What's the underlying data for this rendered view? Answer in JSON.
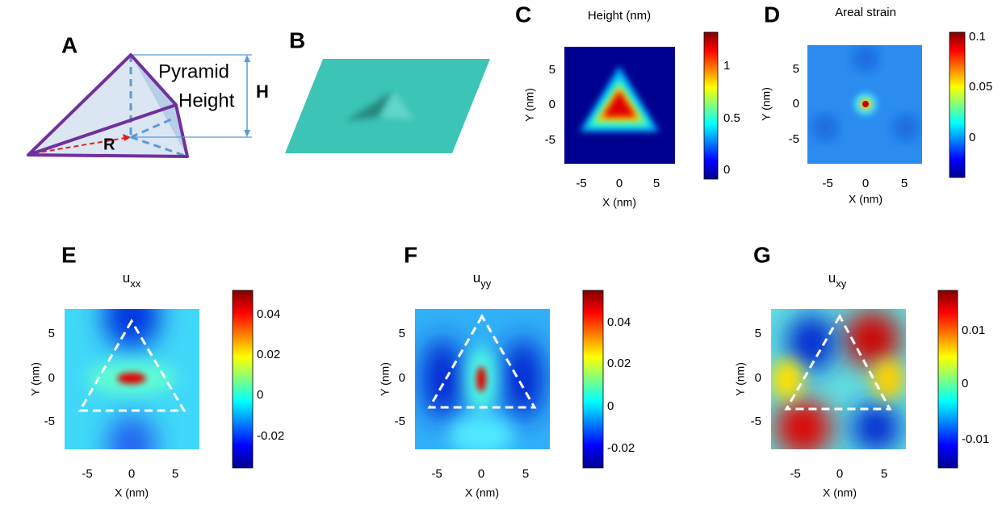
{
  "panel_a": {
    "letter": "A",
    "text_pyramid": "Pyramid",
    "text_height": "Height",
    "text_h": "H",
    "text_r": "R"
  },
  "panel_b": {
    "letter": "B"
  },
  "panel_c": {
    "letter": "C",
    "title": "Height (nm)",
    "x_label": "X (nm)",
    "y_label": "Y (nm)",
    "x_ticks": [
      -5,
      0,
      5
    ],
    "y_ticks": [
      5,
      0,
      -5
    ],
    "colorbar_ticks": [
      1,
      0.5,
      0
    ]
  },
  "panel_d": {
    "letter": "D",
    "title": "Areal strain",
    "x_label": "X (nm)",
    "y_label": "Y (nm)",
    "x_ticks": [
      -5,
      0,
      5
    ],
    "y_ticks": [
      5,
      0,
      -5
    ],
    "colorbar_ticks": [
      0.1,
      0.05,
      0
    ]
  },
  "panel_e": {
    "letter": "E",
    "title": {
      "main": "u",
      "sub": "xx"
    },
    "x_label": "X (nm)",
    "y_label": "Y (nm)",
    "x_ticks": [
      -5,
      0,
      5
    ],
    "y_ticks": [
      5,
      0,
      -5
    ],
    "colorbar_ticks": [
      0.04,
      0.02,
      0,
      -0.02
    ]
  },
  "panel_f": {
    "letter": "F",
    "title": {
      "main": "u",
      "sub": "yy"
    },
    "x_label": "X (nm)",
    "y_label": "Y (nm)",
    "x_ticks": [
      -5,
      0,
      5
    ],
    "y_ticks": [
      5,
      0,
      -5
    ],
    "colorbar_ticks": [
      0.04,
      0.02,
      0,
      -0.02
    ]
  },
  "panel_g": {
    "letter": "G",
    "title": {
      "main": "u",
      "sub": "xy"
    },
    "x_label": "X (nm)",
    "y_label": "Y (nm)",
    "x_ticks": [
      -5,
      0,
      5
    ],
    "y_ticks": [
      5,
      0,
      -5
    ],
    "colorbar_ticks": [
      0.01,
      0,
      -0.01
    ]
  }
}
